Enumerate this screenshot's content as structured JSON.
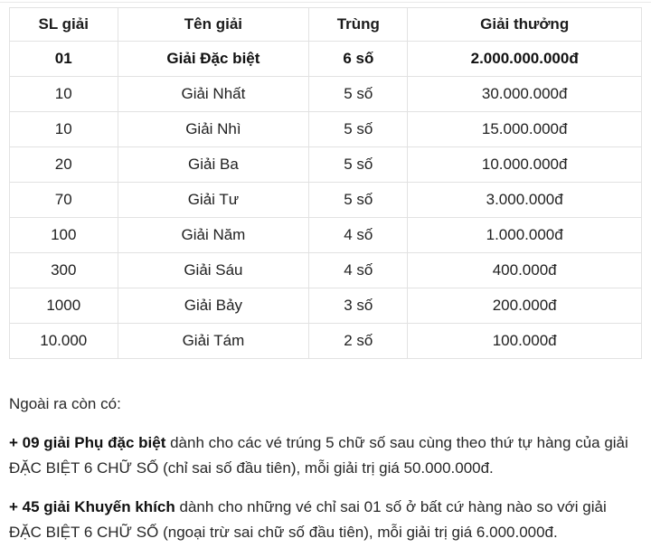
{
  "table": {
    "headers": {
      "quantity": "SL giải",
      "name": "Tên giải",
      "match": "Trùng",
      "prize": "Giải thưởng"
    },
    "rows": [
      {
        "quantity": "01",
        "name": "Giải Đặc biệt",
        "match": "6 số",
        "prize": "2.000.000.000đ"
      },
      {
        "quantity": "10",
        "name": "Giải Nhất",
        "match": "5 số",
        "prize": "30.000.000đ"
      },
      {
        "quantity": "10",
        "name": "Giải Nhì",
        "match": "5 số",
        "prize": "15.000.000đ"
      },
      {
        "quantity": "20",
        "name": "Giải Ba",
        "match": "5 số",
        "prize": "10.000.000đ"
      },
      {
        "quantity": "70",
        "name": "Giải Tư",
        "match": "5 số",
        "prize": "3.000.000đ"
      },
      {
        "quantity": "100",
        "name": "Giải Năm",
        "match": "4 số",
        "prize": "1.000.000đ"
      },
      {
        "quantity": "300",
        "name": "Giải Sáu",
        "match": "4 số",
        "prize": "400.000đ"
      },
      {
        "quantity": "1000",
        "name": "Giải Bảy",
        "match": "3 số",
        "prize": "200.000đ"
      },
      {
        "quantity": "10.000",
        "name": "Giải Tám",
        "match": "2 số",
        "prize": "100.000đ"
      }
    ]
  },
  "notes": {
    "intro": "Ngoài ra còn có:",
    "items": [
      {
        "bold": "+ 09 giải Phụ đặc biệt",
        "text": " dành cho các vé trúng 5 chữ số sau cùng theo thứ tự hàng của giải ĐẶC BIỆT 6 CHỮ SỐ (chỉ sai số đầu tiên), mỗi giải trị giá 50.000.000đ."
      },
      {
        "bold": "+ 45 giải Khuyến khích",
        "text": " dành cho những vé chỉ sai 01 số ở bất cứ hàng nào so với giải ĐẶC BIỆT 6 CHỮ SỐ (ngoại trừ sai chữ số đầu tiên), mỗi giải trị giá 6.000.000đ."
      }
    ]
  },
  "colors": {
    "border": "#e2e2e2",
    "text": "#212121",
    "background": "#ffffff"
  }
}
